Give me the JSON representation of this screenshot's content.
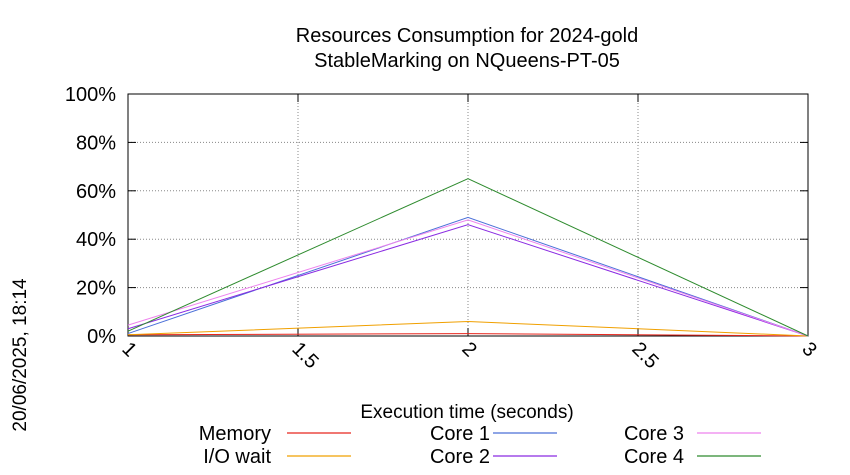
{
  "chart_data": {
    "type": "line",
    "title": "Resources Consumption for 2024-gold",
    "subtitle": "StableMarking on NQueens-PT-05",
    "xlabel": "Execution time (seconds)",
    "ylabel": "",
    "xlim": [
      1,
      3
    ],
    "ylim": [
      0,
      100
    ],
    "x_ticks": [
      "1",
      "1.5",
      "2",
      "2.5",
      "3"
    ],
    "y_ticks": [
      "0%",
      "20%",
      "40%",
      "60%",
      "80%",
      "100%"
    ],
    "grid": true,
    "legend_position": "bottom",
    "timestamp": "20/06/2025, 18:14",
    "x": [
      1,
      2,
      3
    ],
    "series": [
      {
        "name": "Memory",
        "color": "#e8261d",
        "values": [
          0.5,
          1.0,
          0
        ]
      },
      {
        "name": "I/O wait",
        "color": "#f0a000",
        "values": [
          0.5,
          6.0,
          0
        ]
      },
      {
        "name": "Core 1",
        "color": "#4a6fd8",
        "values": [
          1.0,
          49.0,
          0
        ]
      },
      {
        "name": "Core 2",
        "color": "#8a2be2",
        "values": [
          3.0,
          46.0,
          0
        ]
      },
      {
        "name": "Core 3",
        "color": "#ee82ee",
        "values": [
          4.5,
          48.0,
          0
        ]
      },
      {
        "name": "Core 4",
        "color": "#2e8b2e",
        "values": [
          2.0,
          65.0,
          0
        ]
      }
    ]
  }
}
